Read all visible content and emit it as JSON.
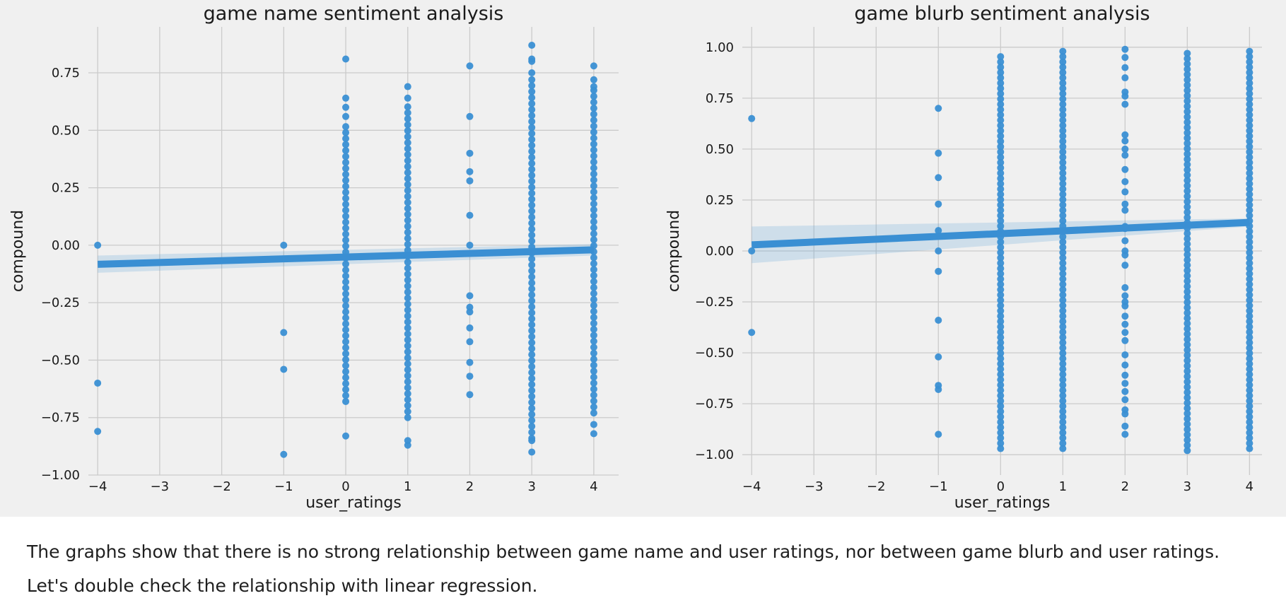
{
  "caption": {
    "line1": "The graphs show that there is no strong relationship between game name and user ratings, nor between game blurb and user ratings.",
    "line2": "Let's double check the relationship with linear regression."
  },
  "colors": {
    "background": "#f0f0f0",
    "grid": "#cbcbcb",
    "points": "#3a8fd3",
    "line": "#3a8fd3",
    "band": "#3a8fd3"
  },
  "chart_data": [
    {
      "type": "scatter",
      "title": "game name sentiment analysis",
      "xlabel": "user_ratings",
      "ylabel": "compound",
      "xlim": [
        -4.15,
        4.4
      ],
      "ylim": [
        -1.0,
        0.95
      ],
      "xticks": [
        -4,
        -3,
        -2,
        -1,
        0,
        1,
        2,
        3,
        4
      ],
      "yticks": [
        -1.0,
        -0.75,
        -0.5,
        -0.25,
        0.0,
        0.25,
        0.5,
        0.75
      ],
      "grid": true,
      "regression": {
        "x": [
          -4,
          4
        ],
        "y": [
          -0.083,
          -0.02
        ],
        "ci": [
          [
            -0.12,
            -0.045
          ],
          [
            -0.045,
            0.005
          ]
        ]
      },
      "columns": [
        {
          "x": -4,
          "values": [
            0.0,
            -0.6,
            -0.81
          ]
        },
        {
          "x": -1,
          "values": [
            0.0,
            -0.38,
            -0.54,
            -0.91
          ]
        },
        {
          "x": 0,
          "values": [
            0.81,
            0.64,
            0.6,
            0.56,
            -0.83
          ],
          "band": [
            -0.68,
            0.54
          ]
        },
        {
          "x": 1,
          "values": [
            0.69,
            0.64,
            -0.85,
            -0.87
          ],
          "band": [
            -0.75,
            0.62
          ]
        },
        {
          "x": 2,
          "values": [
            0.78,
            0.56,
            0.4,
            0.32,
            0.28,
            0.13,
            0.0,
            -0.22,
            -0.27,
            -0.29,
            -0.36,
            -0.42,
            -0.51,
            -0.57,
            -0.65
          ]
        },
        {
          "x": 3,
          "values": [
            0.87,
            0.81,
            0.8,
            0.75,
            -0.85,
            -0.9
          ],
          "band": [
            -0.84,
            0.72
          ]
        },
        {
          "x": 4,
          "values": [
            0.78,
            0.72,
            0.69,
            -0.78,
            -0.82
          ],
          "band": [
            -0.73,
            0.68
          ]
        }
      ]
    },
    {
      "type": "scatter",
      "title": "game blurb sentiment analysis",
      "xlabel": "user_ratings",
      "ylabel": "compound",
      "xlim": [
        -4.15,
        4.2
      ],
      "ylim": [
        -1.1,
        1.1
      ],
      "xticks": [
        -4,
        -3,
        -2,
        -1,
        0,
        1,
        2,
        3,
        4
      ],
      "yticks": [
        -1.0,
        -0.75,
        -0.5,
        -0.25,
        0.0,
        0.25,
        0.5,
        0.75,
        1.0
      ],
      "grid": true,
      "regression": {
        "x": [
          -4,
          4
        ],
        "y": [
          0.03,
          0.14
        ],
        "ci": [
          [
            -0.06,
            0.12
          ],
          [
            0.12,
            0.16
          ]
        ]
      },
      "columns": [
        {
          "x": -4,
          "values": [
            0.65,
            0.0,
            -0.4
          ]
        },
        {
          "x": -1,
          "values": [
            0.7,
            0.48,
            0.36,
            0.23,
            0.1,
            0.0,
            -0.1,
            -0.34,
            -0.52,
            -0.66,
            -0.68,
            -0.9
          ]
        },
        {
          "x": 0,
          "values": [],
          "band": [
            -0.97,
            0.97
          ]
        },
        {
          "x": 1,
          "values": [],
          "band": [
            -0.97,
            0.98
          ]
        },
        {
          "x": 2,
          "values": [
            0.99,
            0.95,
            0.9,
            0.85,
            0.78,
            0.76,
            0.72,
            0.57,
            0.54,
            0.5,
            0.47,
            0.4,
            0.34,
            0.29,
            0.23,
            0.2,
            0.12,
            0.11,
            0.05,
            0.0,
            -0.02,
            -0.07,
            -0.18,
            -0.22,
            -0.25,
            -0.27,
            -0.32,
            -0.36,
            -0.4,
            -0.44,
            -0.51,
            -0.56,
            -0.61,
            -0.65,
            -0.69,
            -0.73,
            -0.78,
            -0.8,
            -0.86,
            -0.9
          ]
        },
        {
          "x": 3,
          "values": [],
          "band": [
            -0.98,
            0.98
          ]
        },
        {
          "x": 4,
          "values": [],
          "band": [
            -0.97,
            0.98
          ]
        }
      ]
    }
  ]
}
